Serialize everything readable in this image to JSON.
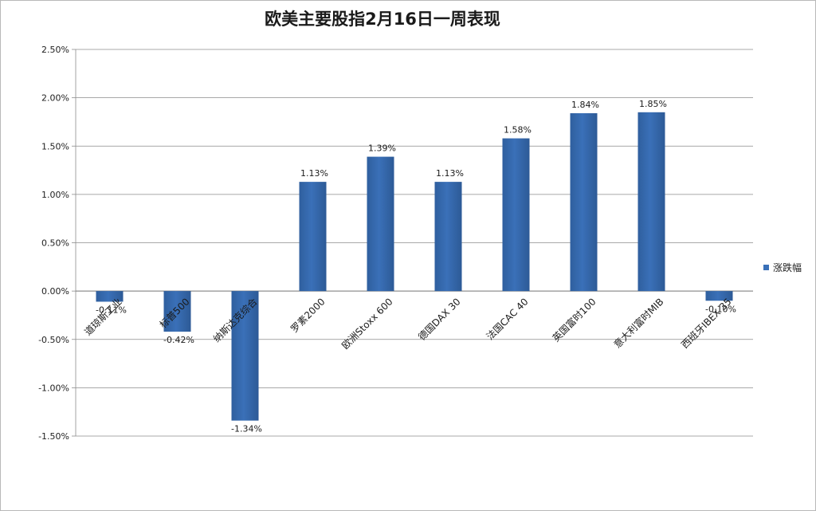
{
  "chart_data": {
    "type": "bar",
    "title": "欧美主要股指2月16日一周表现",
    "categories": [
      "道琼斯工业",
      "标普500",
      "纳斯达克综合",
      "罗素2000",
      "欧洲Stoxx 600",
      "德国DAX 30",
      "法国CAC 40",
      "英国富时100",
      "意大利富时MIB",
      "西班牙IBEX 35"
    ],
    "series": [
      {
        "name": "涨跌幅",
        "values": [
          -0.11,
          -0.42,
          -1.34,
          1.13,
          1.39,
          1.13,
          1.58,
          1.84,
          1.85,
          -0.1
        ]
      }
    ],
    "data_labels": [
      "-0.11%",
      "-0.42%",
      "-1.34%",
      "1.13%",
      "1.39%",
      "1.13%",
      "1.58%",
      "1.84%",
      "1.85%",
      "-0.10%"
    ],
    "y_ticks": [
      2.5,
      2.0,
      1.5,
      1.0,
      0.5,
      0.0,
      -0.5,
      -1.0,
      -1.5
    ],
    "y_tick_labels": [
      "2.50%",
      "2.00%",
      "1.50%",
      "1.00%",
      "0.50%",
      "0.00%",
      "-0.50%",
      "-1.00%",
      "-1.50%"
    ],
    "ylim": [
      -1.5,
      2.5
    ],
    "grid": true,
    "legend_position": "right",
    "bar_color": "#3a70b8",
    "xlabel": "",
    "ylabel": ""
  }
}
